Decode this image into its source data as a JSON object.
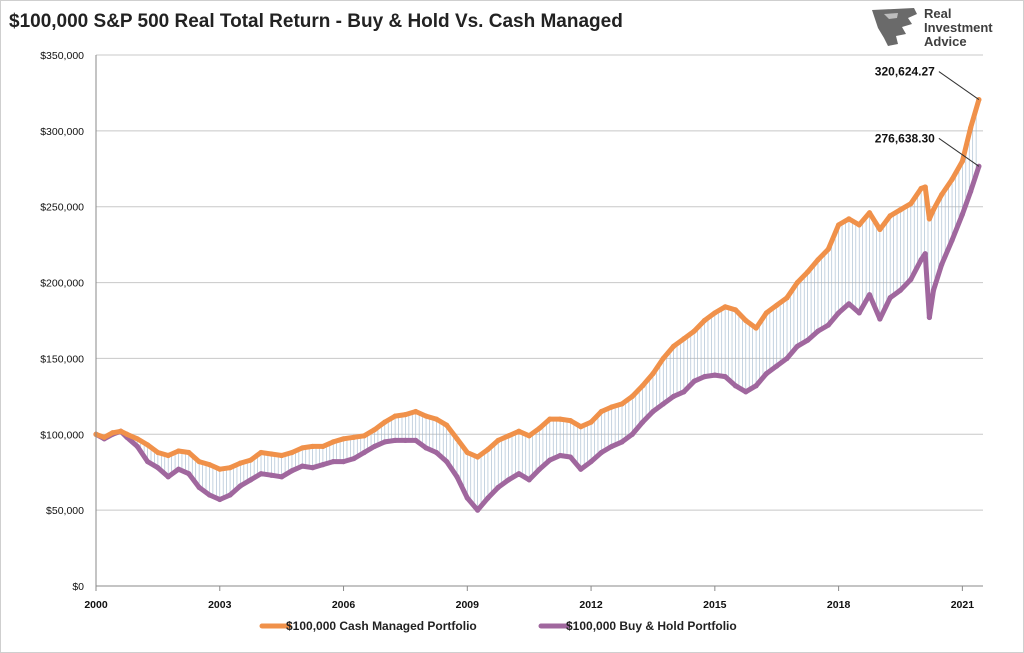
{
  "chart_data": {
    "type": "line",
    "title": "$100,000 S&P 500 Real Total Return - Buy & Hold Vs. Cash Managed",
    "xlabel": "",
    "ylabel": "",
    "xlim": [
      2000,
      2021.5
    ],
    "ylim": [
      0,
      350000
    ],
    "y_ticks": [
      0,
      50000,
      100000,
      150000,
      200000,
      250000,
      300000,
      350000
    ],
    "y_tick_labels": [
      "$0",
      "$50,000",
      "$100,000",
      "$150,000",
      "$200,000",
      "$250,000",
      "$300,000",
      "$350,000"
    ],
    "x_ticks": [
      2000,
      2003,
      2006,
      2009,
      2012,
      2015,
      2018,
      2021
    ],
    "x_tick_labels": [
      "2000",
      "2003",
      "2006",
      "2009",
      "2012",
      "2015",
      "2018",
      "2021"
    ],
    "grid": true,
    "legend": "bottom",
    "series": [
      {
        "name": "$100,000 Cash Managed Portfolio",
        "color": "#F0914A",
        "x": [
          2000.0,
          2000.2,
          2000.4,
          2000.6,
          2000.75,
          2001.0,
          2001.25,
          2001.5,
          2001.75,
          2002.0,
          2002.25,
          2002.5,
          2002.75,
          2003.0,
          2003.25,
          2003.5,
          2003.75,
          2004.0,
          2004.25,
          2004.5,
          2004.75,
          2005.0,
          2005.25,
          2005.5,
          2005.75,
          2006.0,
          2006.25,
          2006.5,
          2006.75,
          2007.0,
          2007.25,
          2007.5,
          2007.75,
          2008.0,
          2008.25,
          2008.5,
          2008.75,
          2009.0,
          2009.25,
          2009.5,
          2009.75,
          2010.0,
          2010.25,
          2010.5,
          2010.75,
          2011.0,
          2011.25,
          2011.5,
          2011.75,
          2012.0,
          2012.25,
          2012.5,
          2012.75,
          2013.0,
          2013.25,
          2013.5,
          2013.75,
          2014.0,
          2014.25,
          2014.5,
          2014.75,
          2015.0,
          2015.25,
          2015.5,
          2015.75,
          2016.0,
          2016.25,
          2016.5,
          2016.75,
          2017.0,
          2017.25,
          2017.5,
          2017.75,
          2018.0,
          2018.25,
          2018.5,
          2018.75,
          2019.0,
          2019.25,
          2019.5,
          2019.75,
          2020.0,
          2020.1,
          2020.2,
          2020.3,
          2020.5,
          2020.75,
          2021.0,
          2021.2,
          2021.4
        ],
        "values": [
          100000,
          98000,
          101000,
          102000,
          100000,
          97000,
          93000,
          88000,
          86000,
          89000,
          88000,
          82000,
          80000,
          77000,
          78000,
          81000,
          83000,
          88000,
          87000,
          86000,
          88000,
          91000,
          92000,
          92000,
          95000,
          97000,
          98000,
          99000,
          103000,
          108000,
          112000,
          113000,
          115000,
          112000,
          110000,
          106000,
          97000,
          88000,
          85000,
          90000,
          96000,
          99000,
          102000,
          99000,
          104000,
          110000,
          110000,
          109000,
          105000,
          108000,
          115000,
          118000,
          120000,
          125000,
          132000,
          140000,
          150000,
          158000,
          163000,
          168000,
          175000,
          180000,
          184000,
          182000,
          175000,
          170000,
          180000,
          185000,
          190000,
          200000,
          207000,
          215000,
          222000,
          238000,
          242000,
          238000,
          246000,
          235000,
          244000,
          248000,
          252000,
          262000,
          263000,
          242000,
          248000,
          258000,
          268000,
          280000,
          302000,
          320624.27
        ]
      },
      {
        "name": "$100,000 Buy & Hold Portfolio",
        "color": "#A0679E",
        "x": [
          2000.0,
          2000.2,
          2000.4,
          2000.6,
          2000.75,
          2001.0,
          2001.25,
          2001.5,
          2001.75,
          2002.0,
          2002.25,
          2002.5,
          2002.75,
          2003.0,
          2003.25,
          2003.5,
          2003.75,
          2004.0,
          2004.25,
          2004.5,
          2004.75,
          2005.0,
          2005.25,
          2005.5,
          2005.75,
          2006.0,
          2006.25,
          2006.5,
          2006.75,
          2007.0,
          2007.25,
          2007.5,
          2007.75,
          2008.0,
          2008.25,
          2008.5,
          2008.75,
          2009.0,
          2009.25,
          2009.5,
          2009.75,
          2010.0,
          2010.25,
          2010.5,
          2010.75,
          2011.0,
          2011.25,
          2011.5,
          2011.75,
          2012.0,
          2012.25,
          2012.5,
          2012.75,
          2013.0,
          2013.25,
          2013.5,
          2013.75,
          2014.0,
          2014.25,
          2014.5,
          2014.75,
          2015.0,
          2015.25,
          2015.5,
          2015.75,
          2016.0,
          2016.25,
          2016.5,
          2016.75,
          2017.0,
          2017.25,
          2017.5,
          2017.75,
          2018.0,
          2018.25,
          2018.5,
          2018.75,
          2019.0,
          2019.25,
          2019.5,
          2019.75,
          2020.0,
          2020.1,
          2020.2,
          2020.3,
          2020.5,
          2020.75,
          2021.0,
          2021.2,
          2021.4
        ],
        "values": [
          100000,
          97000,
          100000,
          102000,
          98000,
          92000,
          82000,
          78000,
          72000,
          77000,
          74000,
          65000,
          60000,
          57000,
          60000,
          66000,
          70000,
          74000,
          73000,
          72000,
          76000,
          79000,
          78000,
          80000,
          82000,
          82000,
          84000,
          88000,
          92000,
          95000,
          96000,
          96000,
          96000,
          91000,
          88000,
          82000,
          72000,
          58000,
          50000,
          58000,
          65000,
          70000,
          74000,
          70000,
          77000,
          83000,
          86000,
          85000,
          77000,
          82000,
          88000,
          92000,
          95000,
          100000,
          108000,
          115000,
          120000,
          125000,
          128000,
          135000,
          138000,
          139000,
          138000,
          132000,
          128000,
          132000,
          140000,
          145000,
          150000,
          158000,
          162000,
          168000,
          172000,
          180000,
          186000,
          180000,
          192000,
          176000,
          190000,
          195000,
          202000,
          215000,
          219000,
          177000,
          195000,
          212000,
          228000,
          245000,
          260000,
          276638.3
        ]
      }
    ],
    "annotations": [
      {
        "series": 0,
        "label": "320,624.27"
      },
      {
        "series": 1,
        "label": "276,638.30"
      }
    ]
  },
  "logo": {
    "line1": "Real",
    "line2": "Investment",
    "line3": "Advice"
  }
}
